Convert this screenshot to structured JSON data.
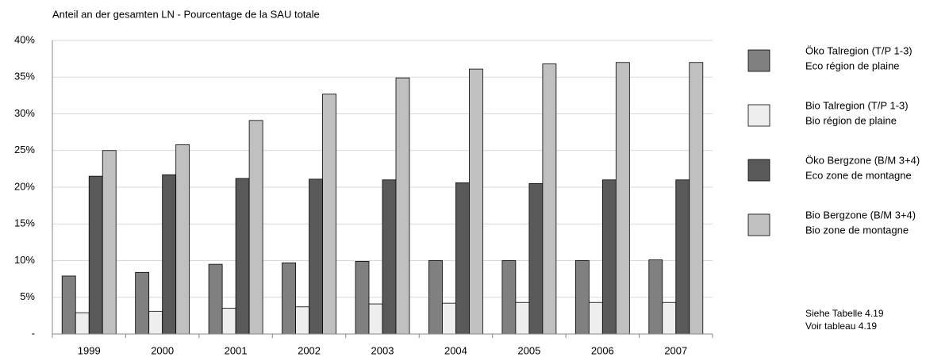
{
  "chart_data": {
    "type": "bar",
    "title": "Anteil an der gesamten LN  -   Pourcentage de la SAU totale",
    "categories": [
      "1999",
      "2000",
      "2001",
      "2002",
      "2003",
      "2004",
      "2005",
      "2006",
      "2007"
    ],
    "series": [
      {
        "name": [
          "Öko Talregion (T/P 1-3)",
          "Eco région de plaine"
        ],
        "color": "#808080",
        "values": [
          7.9,
          8.4,
          9.5,
          9.7,
          9.9,
          10.0,
          10.0,
          10.0,
          10.1
        ]
      },
      {
        "name": [
          "Bio Talregion (T/P 1-3)",
          "Bio région de plaine"
        ],
        "color": "#eeeeee",
        "values": [
          2.9,
          3.1,
          3.5,
          3.7,
          4.1,
          4.2,
          4.3,
          4.3,
          4.3
        ]
      },
      {
        "name": [
          "Öko Bergzone (B/M 3+4)",
          "Eco zone de montagne"
        ],
        "color": "#595959",
        "values": [
          21.5,
          21.7,
          21.2,
          21.1,
          21.0,
          20.6,
          20.5,
          21.0,
          21.0
        ]
      },
      {
        "name": [
          "Bio Bergzone (B/M 3+4)",
          "Bio zone de montagne"
        ],
        "color": "#c0c0c0",
        "values": [
          25.0,
          25.8,
          29.1,
          32.7,
          34.9,
          36.1,
          36.8,
          37.0,
          37.0
        ]
      }
    ],
    "ylim": [
      0,
      40
    ],
    "yticks": [
      {
        "value": 0,
        "label": "-"
      },
      {
        "value": 5,
        "label": "5%"
      },
      {
        "value": 10,
        "label": "10%"
      },
      {
        "value": 15,
        "label": "15%"
      },
      {
        "value": 20,
        "label": "20%"
      },
      {
        "value": 25,
        "label": "25%"
      },
      {
        "value": 30,
        "label": "30%"
      },
      {
        "value": 35,
        "label": "35%"
      },
      {
        "value": 40,
        "label": "40%"
      }
    ],
    "grid": true,
    "legend": "right",
    "notes": [
      "Siehe Tabelle 4.19",
      "Voir tableau 4.19"
    ]
  }
}
